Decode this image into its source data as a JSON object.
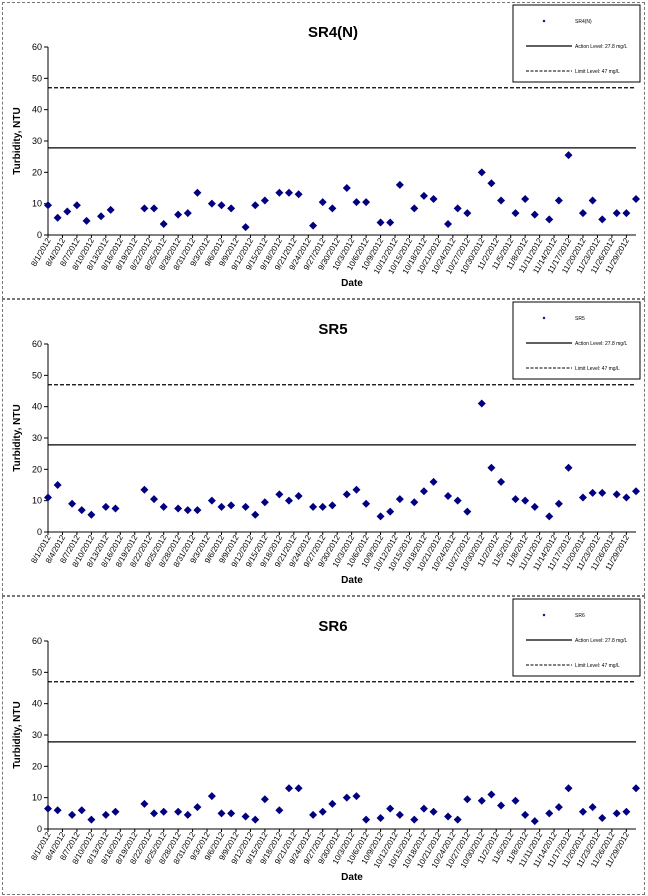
{
  "chart_data": [
    {
      "type": "scatter",
      "title": "SR4(N)",
      "xlabel": "Date",
      "ylabel": "Turbidity, NTU",
      "ylim": [
        0,
        60
      ],
      "yticks": [
        0,
        10,
        20,
        30,
        40,
        50,
        60
      ],
      "grid": false,
      "legend": {
        "position": "top-right",
        "entries": [
          "SR4(N)",
          "Action Level: 27.8 mg/L",
          "Limit Level: 47 mg/L"
        ]
      },
      "x_tick_labels": [
        "8/1/2012",
        "8/4/2012",
        "8/7/2012",
        "8/10/2012",
        "8/13/2012",
        "8/16/2012",
        "8/19/2012",
        "8/22/2012",
        "8/25/2012",
        "8/28/2012",
        "8/31/2012",
        "9/3/2012",
        "9/6/2012",
        "9/9/2012",
        "9/12/2012",
        "9/15/2012",
        "9/18/2012",
        "9/21/2012",
        "9/24/2012",
        "9/27/2012",
        "9/30/2012",
        "10/3/2012",
        "10/6/2012",
        "10/9/2012",
        "10/12/2012",
        "10/15/2012",
        "10/18/2012",
        "10/21/2012",
        "10/24/2012",
        "10/27/2012",
        "10/30/2012",
        "11/2/2012",
        "11/5/2012",
        "11/8/2012",
        "11/11/2012",
        "11/14/2012",
        "11/17/2012",
        "11/20/2012",
        "11/23/2012",
        "11/26/2012",
        "11/29/2012"
      ],
      "reference_lines": [
        {
          "name": "Action Level: 27.8 mg/L",
          "value": 27.8,
          "style": "solid"
        },
        {
          "name": "Limit Level: 47 mg/L",
          "value": 47,
          "style": "dashed"
        }
      ],
      "series": [
        {
          "name": "SR4(N)",
          "x": [
            "8/1/2012",
            "8/3/2012",
            "8/5/2012",
            "8/7/2012",
            "8/9/2012",
            "8/12/2012",
            "8/14/2012",
            "8/21/2012",
            "8/23/2012",
            "8/25/2012",
            "8/28/2012",
            "8/30/2012",
            "9/1/2012",
            "9/4/2012",
            "9/6/2012",
            "9/8/2012",
            "9/11/2012",
            "9/13/2012",
            "9/15/2012",
            "9/18/2012",
            "9/20/2012",
            "9/22/2012",
            "9/25/2012",
            "9/27/2012",
            "9/29/2012",
            "10/2/2012",
            "10/4/2012",
            "10/6/2012",
            "10/9/2012",
            "10/11/2012",
            "10/13/2012",
            "10/16/2012",
            "10/18/2012",
            "10/20/2012",
            "10/23/2012",
            "10/25/2012",
            "10/27/2012",
            "10/30/2012",
            "11/1/2012",
            "11/3/2012",
            "11/6/2012",
            "11/8/2012",
            "11/10/2012",
            "11/13/2012",
            "11/15/2012",
            "11/17/2012",
            "11/20/2012",
            "11/22/2012",
            "11/24/2012",
            "11/27/2012",
            "11/29/2012",
            "12/1/2012"
          ],
          "values": [
            9.5,
            5.5,
            7.5,
            9.5,
            4.5,
            6,
            8,
            8.5,
            8.5,
            3.5,
            6.5,
            7,
            13.5,
            10,
            9.5,
            8.5,
            2.5,
            9.5,
            11,
            13.5,
            13.5,
            13,
            3,
            10.5,
            8.5,
            15,
            10.5,
            10.5,
            4,
            4,
            16,
            8.5,
            12.5,
            11.5,
            3.5,
            8.5,
            7,
            20,
            16.5,
            11,
            7,
            11.5,
            6.5,
            5,
            11,
            25.5,
            7,
            11,
            5,
            7,
            7,
            11.5
          ]
        }
      ]
    },
    {
      "type": "scatter",
      "title": "SR5",
      "xlabel": "Date",
      "ylabel": "Turbidity, NTU",
      "ylim": [
        0,
        60
      ],
      "yticks": [
        0,
        10,
        20,
        30,
        40,
        50,
        60
      ],
      "grid": false,
      "legend": {
        "position": "top-right",
        "entries": [
          "SR5",
          "Action Level: 27.8 mg/L",
          "Limit Level: 47 mg/L"
        ]
      },
      "x_tick_labels": [
        "8/1/2012",
        "8/4/2012",
        "8/7/2012",
        "8/10/2012",
        "8/13/2012",
        "8/16/2012",
        "8/19/2012",
        "8/22/2012",
        "8/25/2012",
        "8/28/2012",
        "8/31/2012",
        "9/3/2012",
        "9/6/2012",
        "9/9/2012",
        "9/12/2012",
        "9/15/2012",
        "9/18/2012",
        "9/21/2012",
        "9/24/2012",
        "9/27/2012",
        "9/30/2012",
        "10/3/2012",
        "10/6/2012",
        "10/9/2012",
        "10/12/2012",
        "10/15/2012",
        "10/18/2012",
        "10/21/2012",
        "10/24/2012",
        "10/27/2012",
        "10/30/2012",
        "11/2/2012",
        "11/5/2012",
        "11/8/2012",
        "11/11/2012",
        "11/14/2012",
        "11/17/2012",
        "11/20/2012",
        "11/23/2012",
        "11/26/2012",
        "11/29/2012"
      ],
      "reference_lines": [
        {
          "name": "Action Level: 27.8 mg/L",
          "value": 27.8,
          "style": "solid"
        },
        {
          "name": "Limit Level: 47 mg/L",
          "value": 47,
          "style": "dashed"
        }
      ],
      "series": [
        {
          "name": "SR5",
          "x": [
            "8/1/2012",
            "8/3/2012",
            "8/6/2012",
            "8/8/2012",
            "8/10/2012",
            "8/13/2012",
            "8/15/2012",
            "8/21/2012",
            "8/23/2012",
            "8/25/2012",
            "8/28/2012",
            "8/30/2012",
            "9/1/2012",
            "9/4/2012",
            "9/6/2012",
            "9/8/2012",
            "9/11/2012",
            "9/13/2012",
            "9/15/2012",
            "9/18/2012",
            "9/20/2012",
            "9/22/2012",
            "9/25/2012",
            "9/27/2012",
            "9/29/2012",
            "10/2/2012",
            "10/4/2012",
            "10/6/2012",
            "10/9/2012",
            "10/11/2012",
            "10/13/2012",
            "10/16/2012",
            "10/18/2012",
            "10/20/2012",
            "10/23/2012",
            "10/25/2012",
            "10/27/2012",
            "10/30/2012",
            "11/1/2012",
            "11/3/2012",
            "11/6/2012",
            "11/8/2012",
            "11/10/2012",
            "11/13/2012",
            "11/15/2012",
            "11/17/2012",
            "11/20/2012",
            "11/22/2012",
            "11/24/2012",
            "11/27/2012",
            "11/29/2012",
            "12/1/2012"
          ],
          "values": [
            11,
            15,
            9,
            7,
            5.5,
            8,
            7.5,
            13.5,
            10.5,
            8,
            7.5,
            7,
            7,
            10,
            8,
            8.5,
            8,
            5.5,
            9.5,
            12,
            10,
            11.5,
            8,
            8,
            8.5,
            12,
            13.5,
            9,
            5,
            6.5,
            10.5,
            9.5,
            13,
            16,
            11.5,
            10,
            6.5,
            41,
            20.5,
            16,
            10.5,
            10,
            8,
            5,
            9,
            20.5,
            11,
            12.5,
            12.5,
            12,
            11,
            13
          ]
        }
      ]
    },
    {
      "type": "scatter",
      "title": "SR6",
      "xlabel": "Date",
      "ylabel": "Turbidity, NTU",
      "ylim": [
        0,
        60
      ],
      "yticks": [
        0,
        10,
        20,
        30,
        40,
        50,
        60
      ],
      "grid": false,
      "legend": {
        "position": "top-right",
        "entries": [
          "SR6",
          "Action Level: 27.8 mg/L",
          "Limit Level: 47 mg/L"
        ]
      },
      "x_tick_labels": [
        "8/1/2012",
        "8/4/2012",
        "8/7/2012",
        "8/10/2012",
        "8/13/2012",
        "8/16/2012",
        "8/19/2012",
        "8/22/2012",
        "8/25/2012",
        "8/28/2012",
        "8/31/2012",
        "9/3/2012",
        "9/6/2012",
        "9/9/2012",
        "9/12/2012",
        "9/15/2012",
        "9/18/2012",
        "9/21/2012",
        "9/24/2012",
        "9/27/2012",
        "9/30/2012",
        "10/3/2012",
        "10/6/2012",
        "10/9/2012",
        "10/12/2012",
        "10/15/2012",
        "10/18/2012",
        "10/21/2012",
        "10/24/2012",
        "10/27/2012",
        "10/30/2012",
        "11/2/2012",
        "11/5/2012",
        "11/8/2012",
        "11/11/2012",
        "11/14/2012",
        "11/17/2012",
        "11/20/2012",
        "11/23/2012",
        "11/26/2012",
        "11/29/2012"
      ],
      "reference_lines": [
        {
          "name": "Action Level: 27.8 mg/L",
          "value": 27.8,
          "style": "solid"
        },
        {
          "name": "Limit Level: 47 mg/L",
          "value": 47,
          "style": "dashed"
        }
      ],
      "series": [
        {
          "name": "SR6",
          "x": [
            "8/1/2012",
            "8/3/2012",
            "8/6/2012",
            "8/8/2012",
            "8/10/2012",
            "8/13/2012",
            "8/15/2012",
            "8/21/2012",
            "8/23/2012",
            "8/25/2012",
            "8/28/2012",
            "8/30/2012",
            "9/1/2012",
            "9/4/2012",
            "9/6/2012",
            "9/8/2012",
            "9/11/2012",
            "9/13/2012",
            "9/15/2012",
            "9/18/2012",
            "9/20/2012",
            "9/22/2012",
            "9/25/2012",
            "9/27/2012",
            "9/29/2012",
            "10/2/2012",
            "10/4/2012",
            "10/6/2012",
            "10/9/2012",
            "10/11/2012",
            "10/13/2012",
            "10/16/2012",
            "10/18/2012",
            "10/20/2012",
            "10/23/2012",
            "10/25/2012",
            "10/27/2012",
            "10/30/2012",
            "11/1/2012",
            "11/3/2012",
            "11/6/2012",
            "11/8/2012",
            "11/10/2012",
            "11/13/2012",
            "11/15/2012",
            "11/17/2012",
            "11/20/2012",
            "11/22/2012",
            "11/24/2012",
            "11/27/2012",
            "11/29/2012",
            "12/1/2012"
          ],
          "values": [
            6.5,
            6,
            4.5,
            6,
            3,
            4.5,
            5.5,
            8,
            5,
            5.5,
            5.5,
            4.5,
            7,
            10.5,
            5,
            5,
            4,
            3,
            9.5,
            6,
            13,
            13,
            4.5,
            5.5,
            8,
            10,
            10.5,
            3,
            3.5,
            6.5,
            4.5,
            3,
            6.5,
            5.5,
            4,
            3,
            9.5,
            9,
            11,
            7.5,
            9,
            4.5,
            2.5,
            5,
            7,
            13,
            5.5,
            7,
            3.5,
            5,
            5.5,
            13
          ]
        }
      ]
    }
  ]
}
